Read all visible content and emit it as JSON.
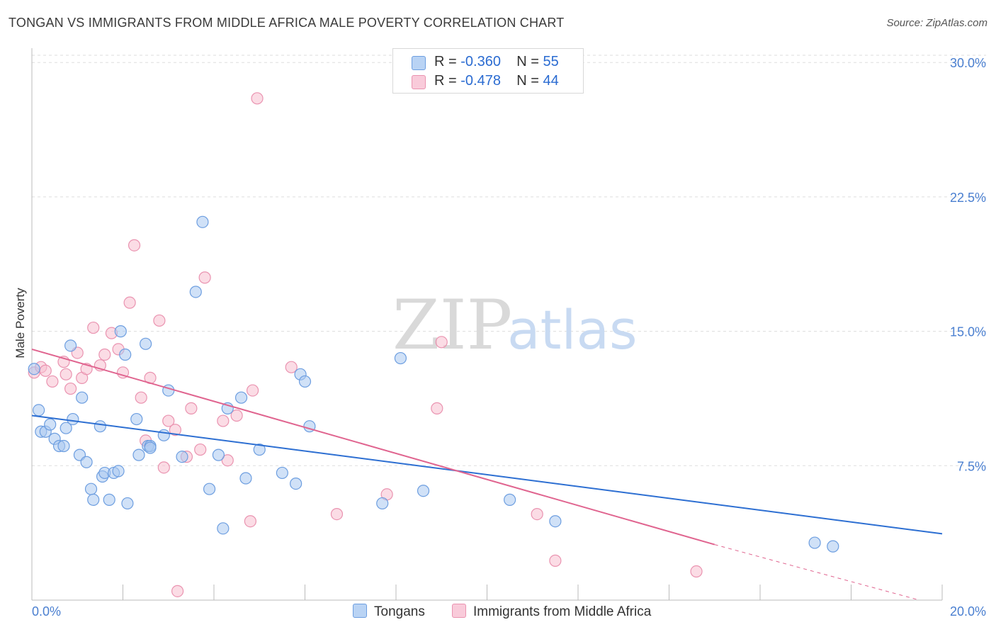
{
  "title": "TONGAN VS IMMIGRANTS FROM MIDDLE AFRICA MALE POVERTY CORRELATION CHART",
  "source": "Source: ZipAtlas.com",
  "legend": {
    "rows": [
      {
        "r_label": "R = ",
        "r_value": "-0.360",
        "n_label": "N = ",
        "n_value": "55"
      },
      {
        "r_label": "R = ",
        "r_value": "-0.478",
        "n_label": "N = ",
        "n_value": "44"
      }
    ]
  },
  "watermark": {
    "zip": "ZIP",
    "atlas": "atlas"
  },
  "colors": {
    "tongans_fill": "#a9c8f0",
    "tongans_stroke": "#6d9ee0",
    "tongans_line": "#2d6fd2",
    "africa_fill": "#f7bfd0",
    "africa_stroke": "#ea93b0",
    "africa_line": "#e0648f",
    "grid": "#dddddd",
    "axis_text": "#4a7fd0"
  },
  "chart_data": {
    "type": "scatter",
    "title": "TONGAN VS IMMIGRANTS FROM MIDDLE AFRICA MALE POVERTY CORRELATION CHART",
    "xlabel": "",
    "ylabel": "Male Poverty",
    "xlim": [
      0,
      20
    ],
    "ylim": [
      0,
      30.8
    ],
    "x_tick_labels": [
      "0.0%",
      "20.0%"
    ],
    "y_ticks": [
      7.5,
      15.0,
      22.5,
      30.0
    ],
    "y_tick_labels": [
      "7.5%",
      "15.0%",
      "22.5%",
      "30.0%"
    ],
    "series": [
      {
        "name": "Tongans",
        "r": -0.36,
        "n": 55,
        "trend": {
          "x0": 0,
          "y0": 10.3,
          "x1": 20,
          "y1": 3.7
        },
        "points": [
          [
            0.05,
            12.9
          ],
          [
            0.15,
            10.6
          ],
          [
            0.2,
            9.4
          ],
          [
            0.3,
            9.4
          ],
          [
            0.4,
            9.8
          ],
          [
            0.5,
            9.0
          ],
          [
            0.6,
            8.6
          ],
          [
            0.7,
            8.6
          ],
          [
            0.75,
            9.6
          ],
          [
            0.85,
            14.2
          ],
          [
            0.9,
            10.1
          ],
          [
            1.05,
            8.1
          ],
          [
            1.1,
            11.3
          ],
          [
            1.2,
            7.7
          ],
          [
            1.3,
            6.2
          ],
          [
            1.35,
            5.6
          ],
          [
            1.5,
            9.7
          ],
          [
            1.55,
            6.9
          ],
          [
            1.6,
            7.1
          ],
          [
            1.7,
            5.6
          ],
          [
            1.8,
            7.1
          ],
          [
            1.9,
            7.2
          ],
          [
            1.95,
            15.0
          ],
          [
            2.05,
            13.7
          ],
          [
            2.1,
            5.4
          ],
          [
            2.3,
            10.1
          ],
          [
            2.35,
            8.1
          ],
          [
            2.5,
            14.3
          ],
          [
            2.55,
            8.6
          ],
          [
            2.6,
            8.6
          ],
          [
            2.9,
            9.2
          ],
          [
            3.0,
            11.7
          ],
          [
            3.3,
            8.0
          ],
          [
            3.6,
            17.2
          ],
          [
            3.75,
            21.1
          ],
          [
            3.9,
            6.2
          ],
          [
            4.1,
            8.1
          ],
          [
            4.2,
            4.0
          ],
          [
            4.3,
            10.7
          ],
          [
            4.6,
            11.3
          ],
          [
            4.7,
            6.8
          ],
          [
            5.0,
            8.4
          ],
          [
            5.5,
            7.1
          ],
          [
            5.8,
            6.5
          ],
          [
            5.9,
            12.6
          ],
          [
            6.0,
            12.2
          ],
          [
            6.1,
            9.7
          ],
          [
            7.7,
            5.4
          ],
          [
            8.1,
            13.5
          ],
          [
            8.6,
            6.1
          ],
          [
            10.5,
            5.6
          ],
          [
            11.5,
            4.4
          ],
          [
            17.2,
            3.2
          ],
          [
            17.6,
            3.0
          ],
          [
            2.6,
            8.5
          ]
        ]
      },
      {
        "name": "Immigrants from Middle Africa",
        "r": -0.478,
        "n": 44,
        "trend": {
          "x0": 0,
          "y0": 14.0,
          "x1": 15.0,
          "y1": 3.1
        },
        "trend_dashed": {
          "x0": 15.0,
          "y0": 3.1,
          "x1": 19.5,
          "y1": 0
        },
        "points": [
          [
            0.05,
            12.7
          ],
          [
            0.2,
            13.0
          ],
          [
            0.3,
            12.8
          ],
          [
            0.45,
            12.2
          ],
          [
            0.7,
            13.3
          ],
          [
            0.75,
            12.6
          ],
          [
            0.85,
            11.8
          ],
          [
            1.0,
            13.8
          ],
          [
            1.1,
            12.4
          ],
          [
            1.2,
            12.9
          ],
          [
            1.35,
            15.2
          ],
          [
            1.5,
            13.1
          ],
          [
            1.6,
            13.7
          ],
          [
            1.75,
            14.9
          ],
          [
            1.9,
            14.0
          ],
          [
            2.0,
            12.7
          ],
          [
            2.15,
            16.6
          ],
          [
            2.25,
            19.8
          ],
          [
            2.4,
            11.3
          ],
          [
            2.5,
            8.9
          ],
          [
            2.6,
            12.4
          ],
          [
            2.8,
            15.6
          ],
          [
            2.9,
            7.4
          ],
          [
            3.0,
            10.0
          ],
          [
            3.15,
            9.5
          ],
          [
            3.2,
            0.5
          ],
          [
            3.4,
            8.0
          ],
          [
            3.5,
            10.7
          ],
          [
            3.7,
            8.4
          ],
          [
            3.8,
            18.0
          ],
          [
            4.2,
            10.0
          ],
          [
            4.3,
            7.8
          ],
          [
            4.5,
            10.3
          ],
          [
            4.8,
            4.4
          ],
          [
            4.85,
            11.7
          ],
          [
            4.95,
            28.0
          ],
          [
            5.7,
            13.0
          ],
          [
            6.7,
            4.8
          ],
          [
            7.8,
            5.9
          ],
          [
            8.9,
            10.7
          ],
          [
            9.0,
            14.4
          ],
          [
            11.1,
            4.8
          ],
          [
            11.5,
            2.2
          ],
          [
            14.6,
            1.6
          ]
        ]
      }
    ]
  },
  "bottom_legend": [
    "Tongans",
    "Immigrants from Middle Africa"
  ]
}
